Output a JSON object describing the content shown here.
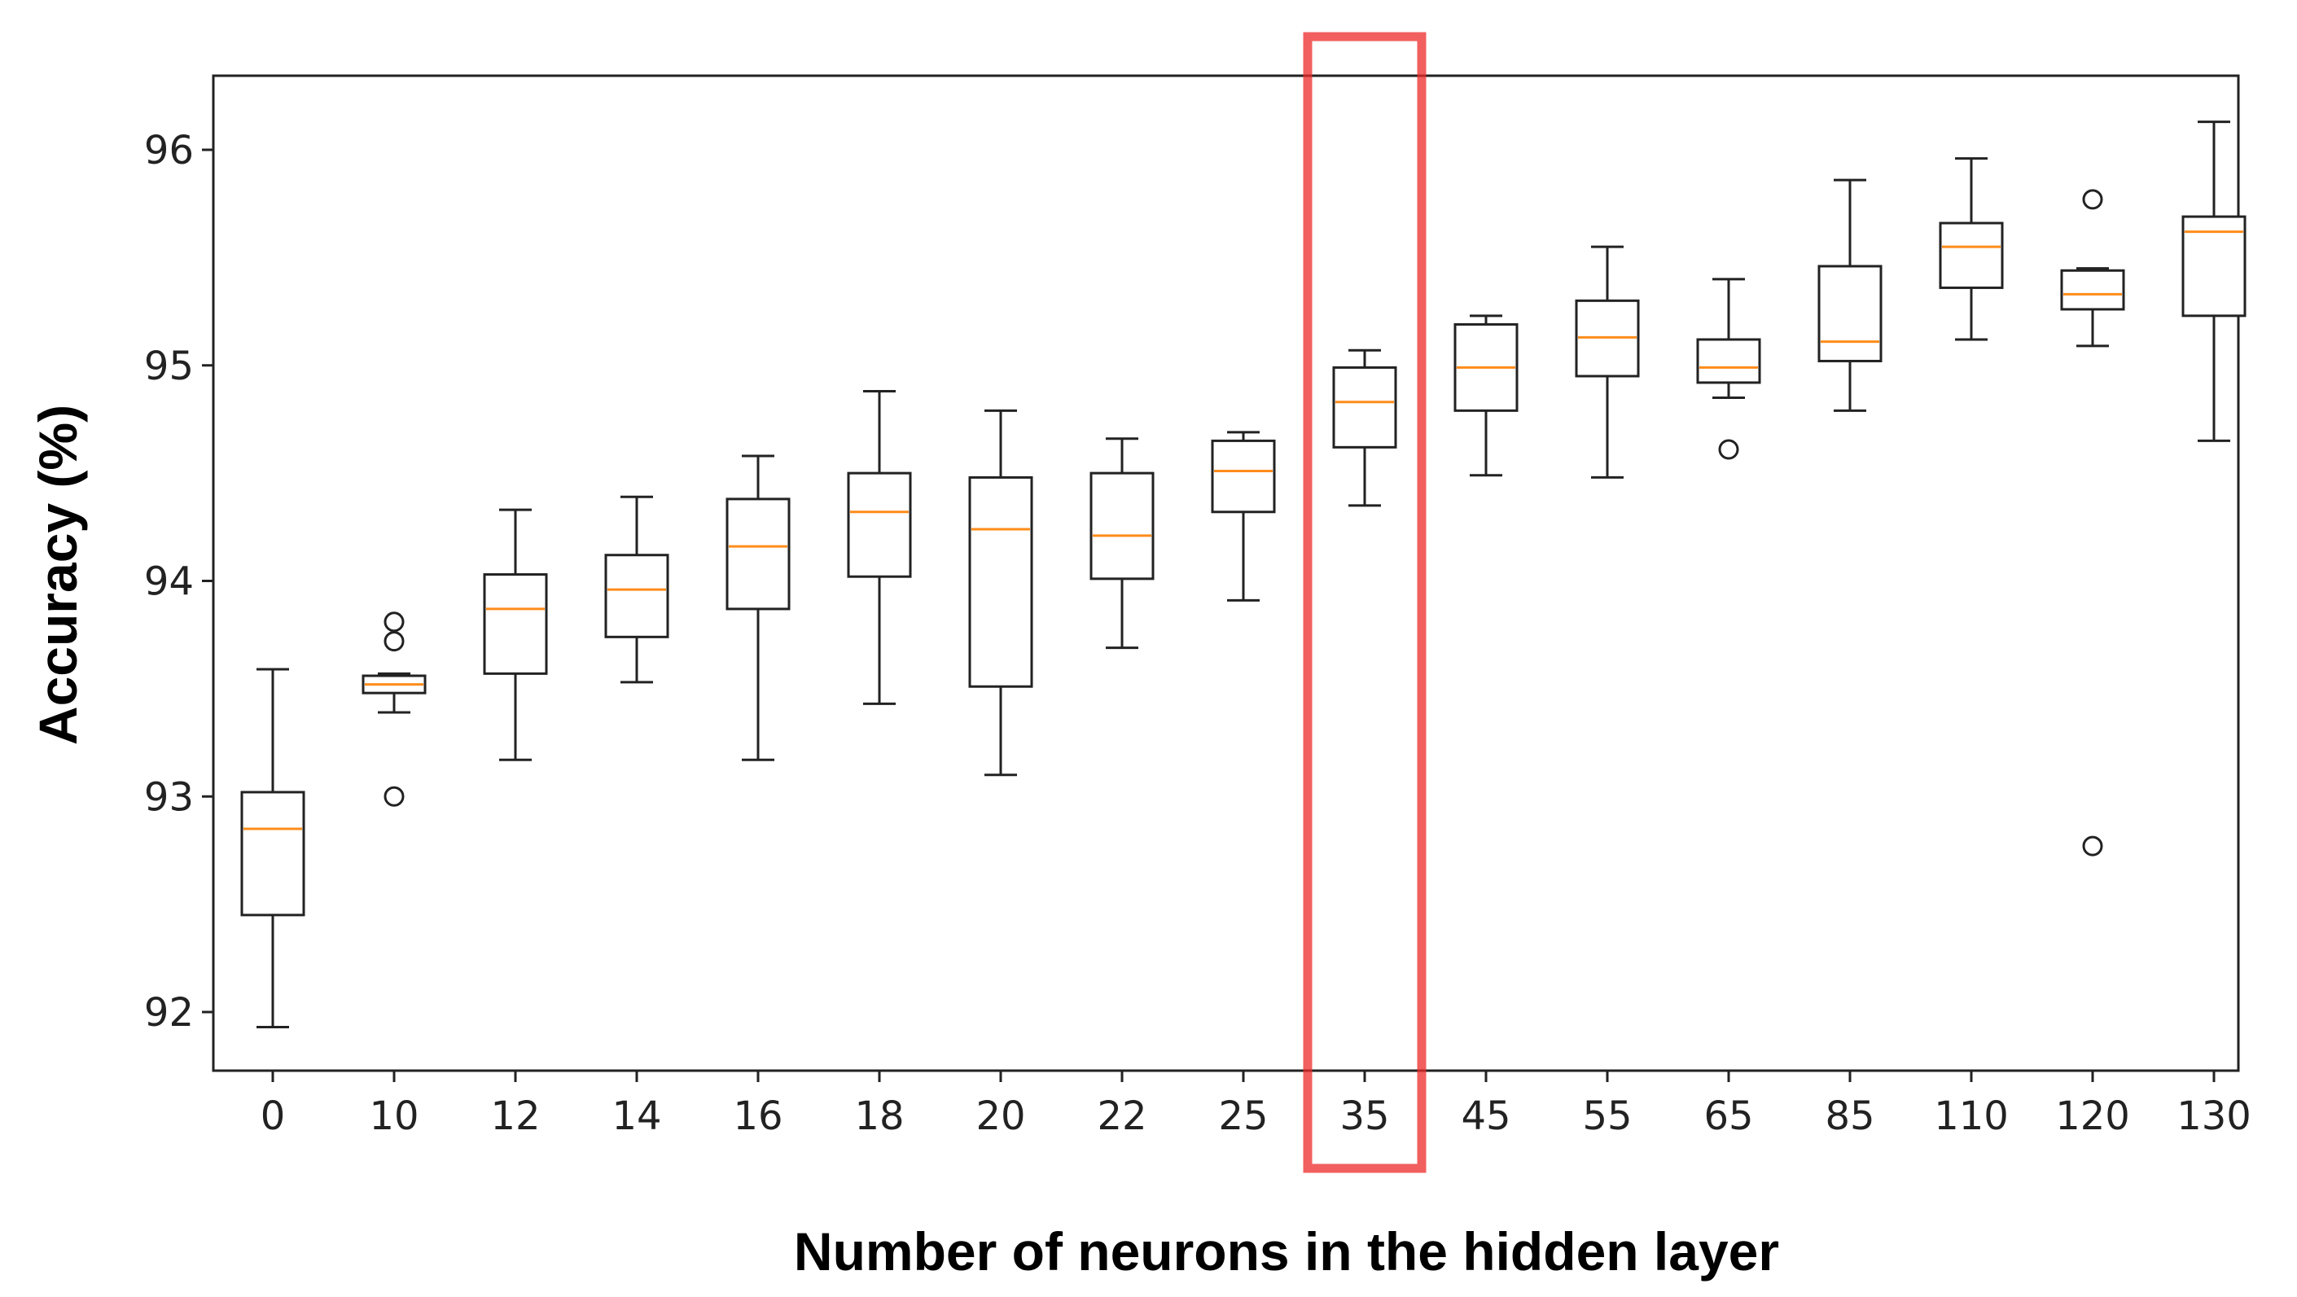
{
  "chart_data": {
    "type": "box",
    "xlabel": "Number of neurons in the hidden layer",
    "ylabel": "Accuracy (%)",
    "ylim": [
      91.7,
      96.35
    ],
    "yticks": [
      92,
      93,
      94,
      95,
      96
    ],
    "grid": false,
    "legend": "none",
    "colors": {
      "box": "#222222",
      "median": "#ff8c1a",
      "highlight": "#ee2a2a"
    },
    "highlight_category": "35",
    "categories": [
      "0",
      "10",
      "12",
      "14",
      "16",
      "18",
      "20",
      "22",
      "25",
      "35",
      "45",
      "55",
      "65",
      "85",
      "110",
      "120",
      "130"
    ],
    "boxes": [
      {
        "label": "0",
        "whisker_low": 91.93,
        "q1": 92.45,
        "median": 92.85,
        "q3": 93.02,
        "whisker_high": 93.59,
        "outliers": []
      },
      {
        "label": "10",
        "whisker_low": 93.39,
        "q1": 93.48,
        "median": 93.52,
        "q3": 93.56,
        "whisker_high": 93.57,
        "outliers": [
          93.81,
          93.72,
          93.0
        ]
      },
      {
        "label": "12",
        "whisker_low": 93.17,
        "q1": 93.57,
        "median": 93.87,
        "q3": 94.03,
        "whisker_high": 94.33,
        "outliers": []
      },
      {
        "label": "14",
        "whisker_low": 93.53,
        "q1": 93.74,
        "median": 93.96,
        "q3": 94.12,
        "whisker_high": 94.39,
        "outliers": []
      },
      {
        "label": "16",
        "whisker_low": 93.17,
        "q1": 93.87,
        "median": 94.16,
        "q3": 94.38,
        "whisker_high": 94.58,
        "outliers": []
      },
      {
        "label": "18",
        "whisker_low": 93.43,
        "q1": 94.02,
        "median": 94.32,
        "q3": 94.5,
        "whisker_high": 94.88,
        "outliers": []
      },
      {
        "label": "20",
        "whisker_low": 93.1,
        "q1": 93.51,
        "median": 94.24,
        "q3": 94.48,
        "whisker_high": 94.79,
        "outliers": []
      },
      {
        "label": "22",
        "whisker_low": 93.69,
        "q1": 94.01,
        "median": 94.21,
        "q3": 94.5,
        "whisker_high": 94.66,
        "outliers": []
      },
      {
        "label": "25",
        "whisker_low": 93.91,
        "q1": 94.32,
        "median": 94.51,
        "q3": 94.65,
        "whisker_high": 94.69,
        "outliers": []
      },
      {
        "label": "35",
        "whisker_low": 94.35,
        "q1": 94.62,
        "median": 94.83,
        "q3": 94.99,
        "whisker_high": 95.07,
        "outliers": []
      },
      {
        "label": "45",
        "whisker_low": 94.49,
        "q1": 94.79,
        "median": 94.99,
        "q3": 95.19,
        "whisker_high": 95.23,
        "outliers": []
      },
      {
        "label": "55",
        "whisker_low": 94.48,
        "q1": 94.95,
        "median": 95.13,
        "q3": 95.3,
        "whisker_high": 95.55,
        "outliers": []
      },
      {
        "label": "65",
        "whisker_low": 94.85,
        "q1": 94.92,
        "median": 94.99,
        "q3": 95.12,
        "whisker_high": 95.4,
        "outliers": [
          94.61
        ]
      },
      {
        "label": "85",
        "whisker_low": 94.79,
        "q1": 95.02,
        "median": 95.11,
        "q3": 95.46,
        "whisker_high": 95.86,
        "outliers": []
      },
      {
        "label": "110",
        "whisker_low": 95.12,
        "q1": 95.36,
        "median": 95.55,
        "q3": 95.66,
        "whisker_high": 95.96,
        "outliers": []
      },
      {
        "label": "120",
        "whisker_low": 95.09,
        "q1": 95.26,
        "median": 95.33,
        "q3": 95.44,
        "whisker_high": 95.45,
        "outliers": [
          95.77,
          92.77
        ]
      },
      {
        "label": "130",
        "whisker_low": 94.65,
        "q1": 95.23,
        "median": 95.62,
        "q3": 95.69,
        "whisker_high": 96.13,
        "outliers": []
      }
    ]
  }
}
